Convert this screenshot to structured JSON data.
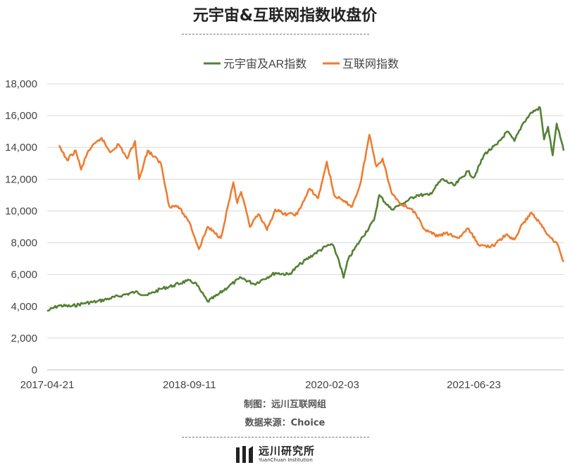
{
  "title": "元宇宙&互联网指数收盘价",
  "footer": {
    "maker": "制图：远川互联网组",
    "source": "数据来源：Choice"
  },
  "logo": {
    "name_cn": "远川研究所",
    "name_en": "YuanChuan Institution"
  },
  "chart_data": {
    "type": "line",
    "title": "元宇宙&互联网指数收盘价",
    "xlabel": "",
    "ylabel": "",
    "ylim": [
      0,
      18000
    ],
    "yticks": [
      0,
      2000,
      4000,
      6000,
      8000,
      10000,
      12000,
      14000,
      16000,
      18000
    ],
    "ytick_labels": [
      "0",
      "2,000",
      "4,000",
      "6,000",
      "8,000",
      "10,000",
      "12,000",
      "14,000",
      "16,000",
      "18,000"
    ],
    "xlim": [
      "2017-04-21",
      "2022-05-10"
    ],
    "xtick_labels": [
      "2017-04-21",
      "2018-09-11",
      "2020-02-03",
      "2021-06-23"
    ],
    "grid": "horizontal",
    "legend_position": "top",
    "series": [
      {
        "name": "元宇宙及AR指数",
        "color": "#548235",
        "x": [
          "2017-04-21",
          "2017-06-01",
          "2017-07-15",
          "2017-09-01",
          "2017-10-15",
          "2017-12-01",
          "2018-01-15",
          "2018-03-01",
          "2018-04-15",
          "2018-06-01",
          "2018-07-15",
          "2018-09-01",
          "2018-10-01",
          "2018-10-20",
          "2018-11-15",
          "2018-12-20",
          "2019-02-01",
          "2019-03-15",
          "2019-05-01",
          "2019-06-01",
          "2019-07-15",
          "2019-09-01",
          "2019-10-15",
          "2019-12-01",
          "2020-01-15",
          "2020-02-03",
          "2020-02-25",
          "2020-03-15",
          "2020-04-01",
          "2020-05-15",
          "2020-07-01",
          "2020-07-20",
          "2020-09-01",
          "2020-10-15",
          "2020-12-01",
          "2021-01-15",
          "2021-03-01",
          "2021-04-15",
          "2021-06-01",
          "2021-06-23",
          "2021-08-01",
          "2021-09-15",
          "2021-10-20",
          "2021-11-15",
          "2021-12-15",
          "2022-01-15",
          "2022-02-15",
          "2022-03-01",
          "2022-03-15",
          "2022-04-01",
          "2022-04-15",
          "2022-05-10"
        ],
        "values": [
          3700,
          4050,
          4000,
          4200,
          4300,
          4500,
          4700,
          4900,
          4700,
          5100,
          5300,
          5600,
          5500,
          5000,
          4300,
          4700,
          5300,
          5800,
          5400,
          5700,
          6100,
          6000,
          6700,
          7300,
          7800,
          7900,
          7000,
          5800,
          7000,
          8200,
          9400,
          11000,
          10100,
          10500,
          11000,
          11000,
          12000,
          11600,
          12500,
          12100,
          13600,
          14200,
          15000,
          14400,
          15500,
          16200,
          16500,
          14500,
          15300,
          13500,
          15500,
          13800
        ]
      },
      {
        "name": "互联网指数",
        "color": "#ED7D31",
        "x": [
          "2017-06-01",
          "2017-07-01",
          "2017-08-01",
          "2017-08-20",
          "2017-09-15",
          "2017-11-01",
          "2017-12-01",
          "2018-01-01",
          "2018-02-01",
          "2018-03-01",
          "2018-03-15",
          "2018-04-15",
          "2018-06-01",
          "2018-07-01",
          "2018-08-01",
          "2018-09-11",
          "2018-10-15",
          "2018-11-15",
          "2019-01-01",
          "2019-02-15",
          "2019-03-01",
          "2019-03-15",
          "2019-04-15",
          "2019-05-15",
          "2019-06-15",
          "2019-07-15",
          "2019-08-15",
          "2019-10-01",
          "2019-11-15",
          "2019-12-15",
          "2020-01-15",
          "2020-02-10",
          "2020-03-15",
          "2020-04-15",
          "2020-05-15",
          "2020-06-15",
          "2020-07-10",
          "2020-08-01",
          "2020-09-01",
          "2020-10-01",
          "2020-11-15",
          "2021-01-01",
          "2021-02-15",
          "2021-03-15",
          "2021-05-01",
          "2021-06-01",
          "2021-07-15",
          "2021-09-01",
          "2021-10-15",
          "2021-11-15",
          "2021-12-15",
          "2022-01-15",
          "2022-02-15",
          "2022-03-15",
          "2022-04-15",
          "2022-05-10"
        ],
        "values": [
          14100,
          13200,
          13800,
          12600,
          13800,
          14600,
          13700,
          14200,
          13300,
          14400,
          12000,
          13800,
          13000,
          10300,
          10300,
          9300,
          7600,
          9000,
          8300,
          11800,
          10500,
          11200,
          9000,
          9800,
          8800,
          10100,
          9800,
          9800,
          11400,
          10800,
          13100,
          11000,
          10600,
          10300,
          11800,
          14800,
          12800,
          13300,
          11200,
          10500,
          10100,
          8800,
          8400,
          8600,
          8300,
          8900,
          7800,
          7800,
          8500,
          8200,
          9200,
          9900,
          9200,
          8500,
          8000,
          6800
        ]
      }
    ]
  }
}
